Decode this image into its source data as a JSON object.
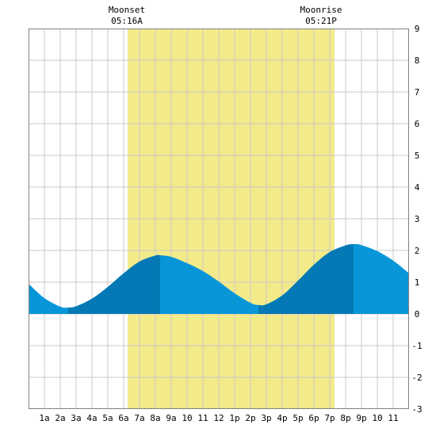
{
  "chart_data": {
    "type": "area",
    "title": "",
    "xlabel": "",
    "ylabel": "",
    "ylim": [
      -3,
      9
    ],
    "xlim": [
      0,
      24
    ],
    "grid": true,
    "y_ticks": [
      9,
      8,
      7,
      6,
      5,
      4,
      3,
      2,
      1,
      0,
      -1,
      -2,
      -3
    ],
    "x_tick_labels": [
      "1a",
      "2a",
      "3a",
      "4a",
      "5a",
      "6a",
      "7a",
      "8a",
      "9a",
      "10",
      "11",
      "12",
      "1p",
      "2p",
      "3p",
      "4p",
      "5p",
      "6p",
      "7p",
      "8p",
      "9p",
      "10",
      "11"
    ],
    "daylight": {
      "start": 6.25,
      "end": 19.3
    },
    "annotations": [
      {
        "label": "Moonset",
        "time": "05:16A",
        "hour": 6.25
      },
      {
        "label": "Moonrise",
        "time": "05:21P",
        "hour": 19.3
      }
    ],
    "series": [
      {
        "x": [
          0,
          1,
          2,
          2.5,
          3,
          4,
          5,
          6,
          7,
          8,
          8.3,
          9,
          10,
          11,
          12,
          13,
          14,
          14.5,
          15,
          16,
          17,
          18,
          19,
          20,
          20.5,
          21,
          22,
          23,
          24
        ],
        "values": [
          0.95,
          0.5,
          0.23,
          0.2,
          0.24,
          0.48,
          0.85,
          1.28,
          1.65,
          1.84,
          1.85,
          1.8,
          1.6,
          1.35,
          1.02,
          0.65,
          0.35,
          0.28,
          0.3,
          0.58,
          1.05,
          1.55,
          1.95,
          2.16,
          2.2,
          2.17,
          1.98,
          1.68,
          1.28
        ]
      }
    ],
    "bands": [
      {
        "start": 2.5,
        "end": 8.3,
        "kind": "rising"
      },
      {
        "start": 14.5,
        "end": 20.5,
        "kind": "rising"
      }
    ],
    "colors": {
      "tide": "#0896d8",
      "tide_rising": "#0579b5",
      "daylight": "#f3ea8a",
      "grid": "#c8c8c8",
      "frame": "#808080"
    }
  }
}
